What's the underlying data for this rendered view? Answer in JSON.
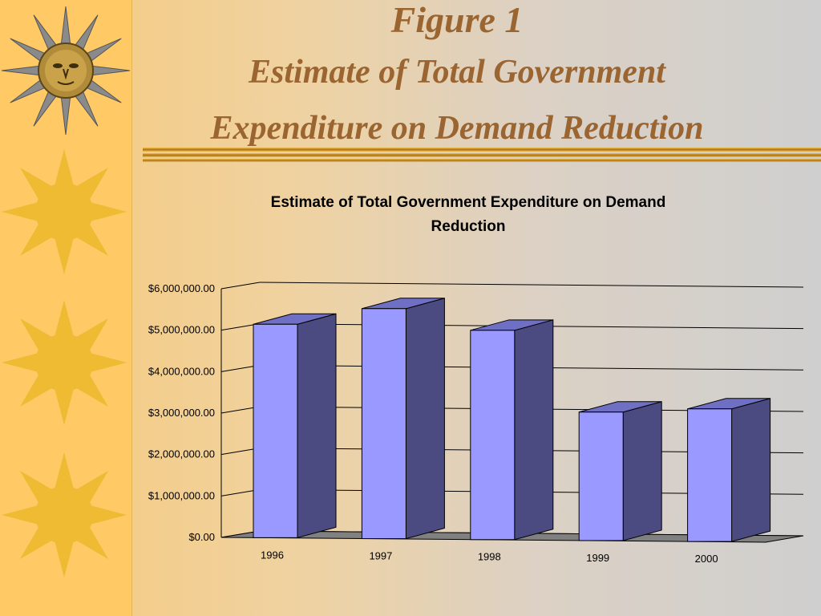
{
  "slide": {
    "figure_label": "Figure 1",
    "title_line1": "Estimate of Total Government",
    "title_line2": "Expenditure on Demand Reduction"
  },
  "chart_data": {
    "type": "bar",
    "title_line1": "Estimate of Total Government Expenditure on Demand",
    "title_line2": "Reduction",
    "categories": [
      "1996",
      "1997",
      "1998",
      "1999",
      "2000"
    ],
    "values": [
      5150000,
      5550000,
      5050000,
      3100000,
      3200000
    ],
    "ylim": [
      0,
      6000000
    ],
    "yticks": [
      0,
      1000000,
      2000000,
      3000000,
      4000000,
      5000000,
      6000000
    ],
    "ytick_labels": [
      "$0.00",
      "$1,000,000.00",
      "$2,000,000.00",
      "$3,000,000.00",
      "$4,000,000.00",
      "$5,000,000.00",
      "$6,000,000.00"
    ],
    "grid": true,
    "style": "3d-column",
    "colors": {
      "bar_front": "#9999ff",
      "bar_side": "#4b4b82",
      "bar_top": "#6f6fc4",
      "floor": "#808080"
    }
  }
}
